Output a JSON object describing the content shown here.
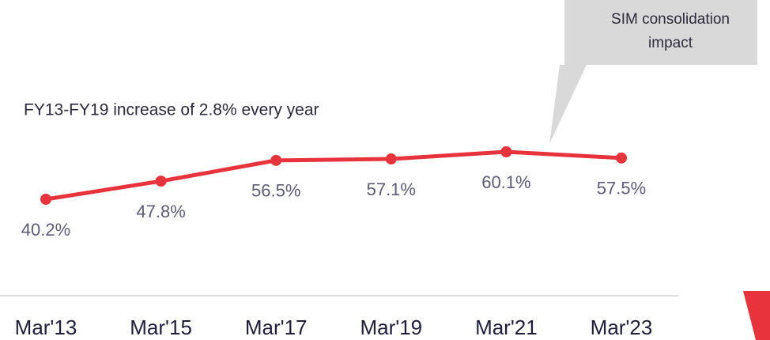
{
  "chart_data": {
    "type": "line",
    "categories": [
      "Mar'13",
      "Mar'15",
      "Mar'17",
      "Mar'19",
      "Mar'21",
      "Mar'23"
    ],
    "series": [
      {
        "color": "#e8323c",
        "values": [
          40.2,
          47.8,
          56.5,
          57.1,
          60.1,
          57.5
        ],
        "value_labels": [
          "40.2%",
          "47.8%",
          "56.5%",
          "57.1%",
          "60.1%",
          "57.5%"
        ]
      }
    ],
    "annotation": "FY13-FY19 increase of 2.8% every year",
    "callout": [
      "SIM consolidation",
      "impact"
    ]
  }
}
